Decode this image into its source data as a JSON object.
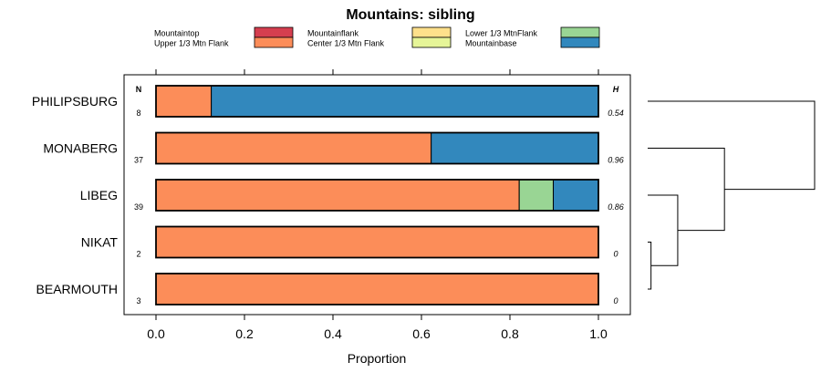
{
  "chart_data": {
    "type": "bar",
    "orientation": "horizontal",
    "stacked": true,
    "title": "Mountains: sibling",
    "xlabel": "Proportion",
    "ylabel": "",
    "xlim": [
      0,
      1
    ],
    "x_ticks": [
      0,
      0.2,
      0.4,
      0.6,
      0.8,
      1
    ],
    "x_tick_labels": [
      "0.0",
      "0.2",
      "0.4",
      "0.6",
      "0.8",
      "1.0"
    ],
    "n_header": "N",
    "h_header": "H",
    "legend": [
      {
        "name": "Mountaintop",
        "color": "#d53e4f"
      },
      {
        "name": "Upper 1/3 Mtn Flank",
        "color": "#fc8d59"
      },
      {
        "name": "Mountainflank",
        "color": "#fee08b"
      },
      {
        "name": "Center 1/3 Mtn Flank",
        "color": "#e6f598"
      },
      {
        "name": "Lower 1/3 MtnFlank",
        "color": "#99d594"
      },
      {
        "name": "Mountainbase",
        "color": "#3288bd"
      }
    ],
    "categories": [
      "PHILIPSBURG",
      "MONABERG",
      "LIBEG",
      "NIKAT",
      "BEARMOUTH"
    ],
    "n": [
      "8",
      "37",
      "39",
      "2",
      "3"
    ],
    "h": [
      "0.54",
      "0.96",
      "0.86",
      "0",
      "0"
    ],
    "series": [
      {
        "name": "Mountaintop",
        "values": [
          0,
          0,
          0,
          0,
          0
        ]
      },
      {
        "name": "Upper 1/3 Mtn Flank",
        "values": [
          0.125,
          0.622,
          0.821,
          1.0,
          1.0
        ]
      },
      {
        "name": "Mountainflank",
        "values": [
          0,
          0,
          0,
          0,
          0
        ]
      },
      {
        "name": "Center 1/3 Mtn Flank",
        "values": [
          0,
          0,
          0,
          0,
          0
        ]
      },
      {
        "name": "Lower 1/3 MtnFlank",
        "values": [
          0,
          0,
          0.077,
          0,
          0
        ]
      },
      {
        "name": "Mountainbase",
        "values": [
          0.875,
          0.378,
          0.102,
          0,
          0
        ]
      }
    ],
    "dendrogram": {
      "type": "hierarchical-clustering",
      "merges": [
        {
          "left": "NIKAT",
          "right": "BEARMOUTH",
          "height": 0.02
        },
        {
          "left": "LIBEG",
          "right": "NIKAT+BEARMOUTH",
          "height": 0.18
        },
        {
          "left": "MONABERG",
          "right": "LIBEG+NIKAT+BEARMOUTH",
          "height": 0.46
        },
        {
          "left": "PHILIPSBURG",
          "right": "MONABERG+LIBEG+NIKAT+BEARMOUTH",
          "height": 1.0
        }
      ]
    }
  }
}
